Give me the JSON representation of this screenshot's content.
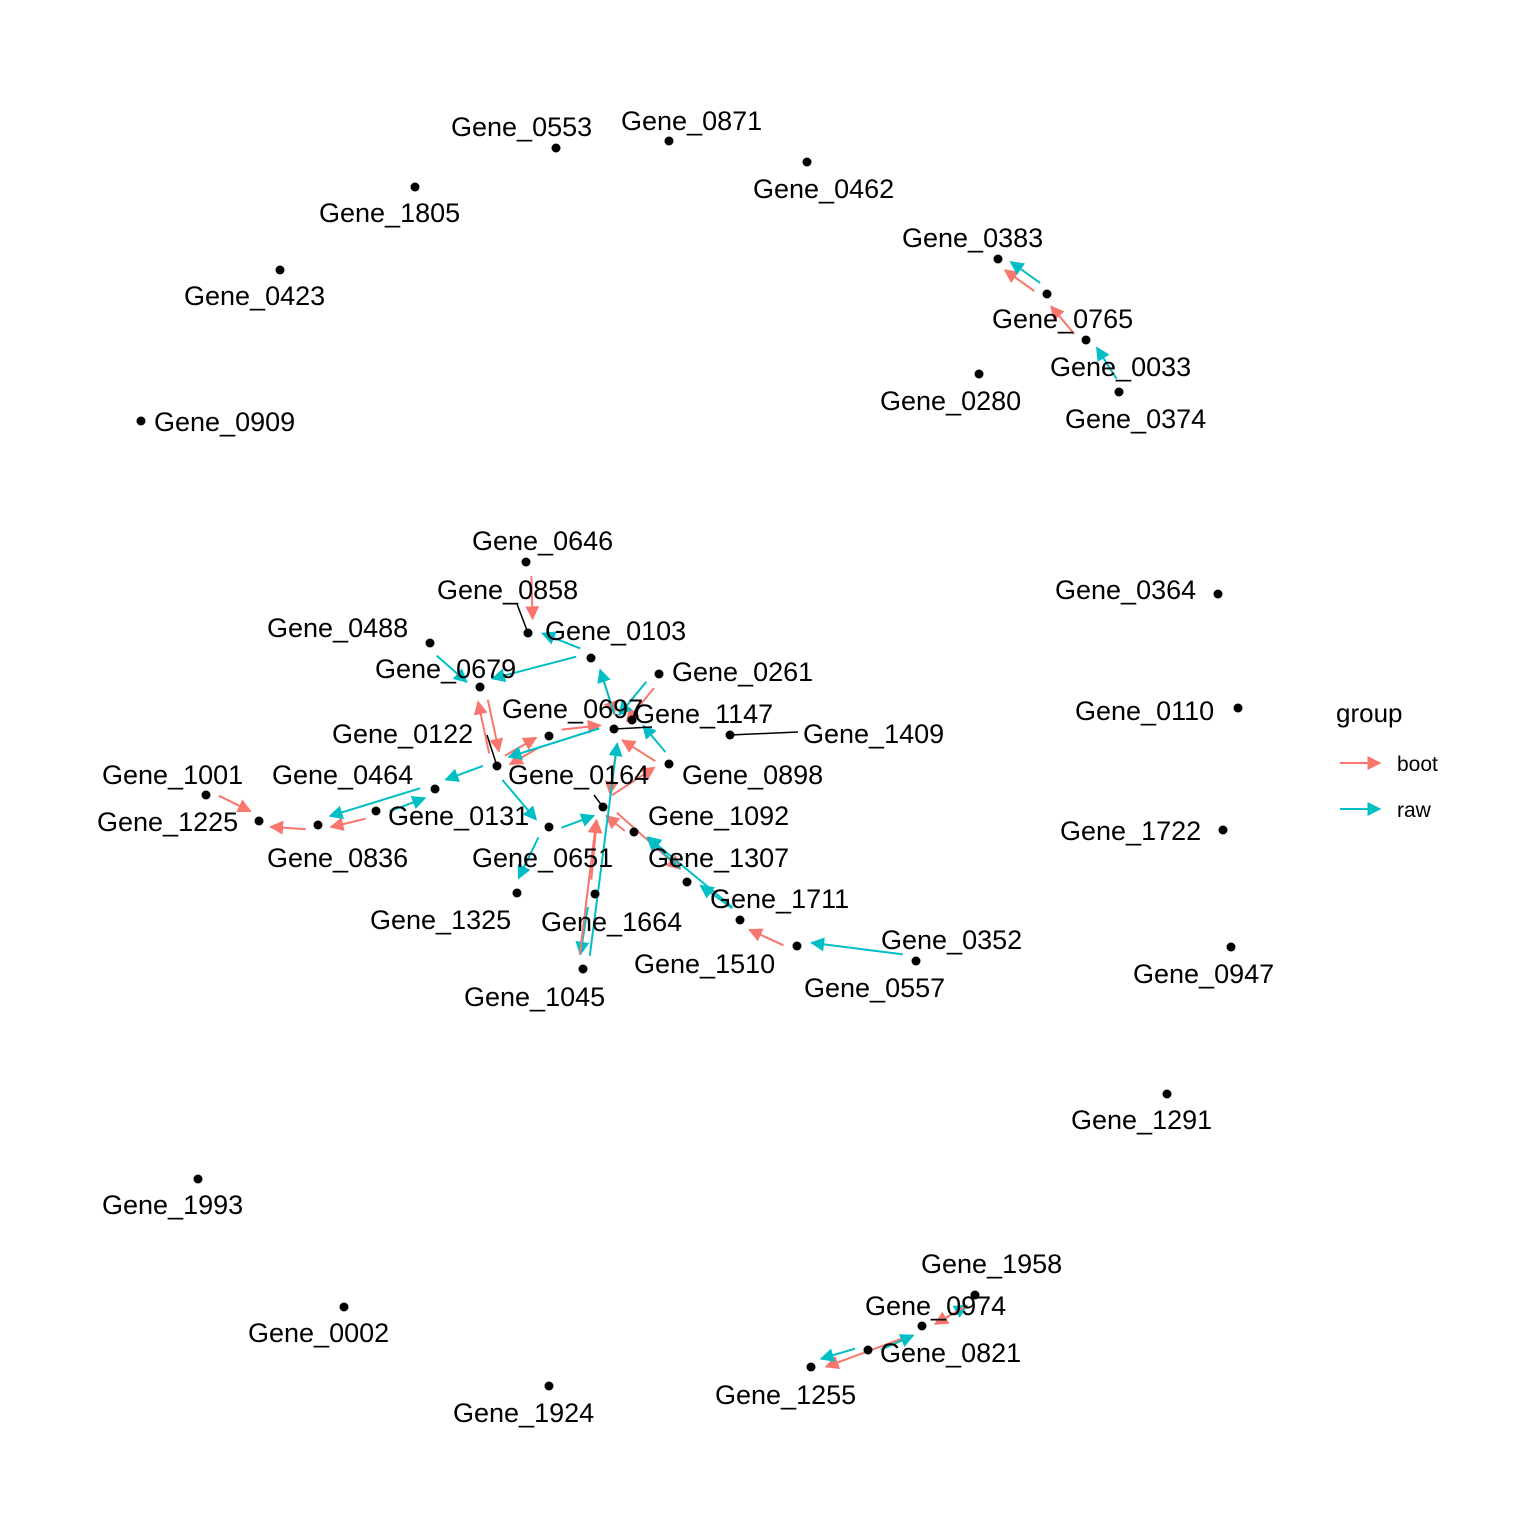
{
  "colors": {
    "boot": "#F8766D",
    "raw": "#00BFC4",
    "node": "#000000"
  },
  "legend": {
    "title": "group",
    "items": [
      {
        "key": "boot",
        "label": "boot"
      },
      {
        "key": "raw",
        "label": "raw"
      }
    ]
  },
  "nodes": [
    {
      "id": "Gene_0553",
      "label": "Gene_0553"
    },
    {
      "id": "Gene_0871",
      "label": "Gene_0871"
    },
    {
      "id": "Gene_0462",
      "label": "Gene_0462"
    },
    {
      "id": "Gene_1805",
      "label": "Gene_1805"
    },
    {
      "id": "Gene_0423",
      "label": "Gene_0423"
    },
    {
      "id": "Gene_0909",
      "label": "Gene_0909"
    },
    {
      "id": "Gene_0383",
      "label": "Gene_0383"
    },
    {
      "id": "Gene_0765",
      "label": "Gene_0765"
    },
    {
      "id": "Gene_0033",
      "label": "Gene_0033"
    },
    {
      "id": "Gene_0374",
      "label": "Gene_0374"
    },
    {
      "id": "Gene_0280",
      "label": "Gene_0280"
    },
    {
      "id": "Gene_0646",
      "label": "Gene_0646"
    },
    {
      "id": "Gene_0858",
      "label": "Gene_0858"
    },
    {
      "id": "Gene_0103",
      "label": "Gene_0103"
    },
    {
      "id": "Gene_0488",
      "label": "Gene_0488"
    },
    {
      "id": "Gene_0679",
      "label": "Gene_0679"
    },
    {
      "id": "Gene_0261",
      "label": "Gene_0261"
    },
    {
      "id": "Gene_0697",
      "label": "Gene_0697"
    },
    {
      "id": "Gene_1147",
      "label": "Gene_1147"
    },
    {
      "id": "Gene_1409",
      "label": "Gene_1409"
    },
    {
      "id": "Gene_0122",
      "label": "Gene_0122"
    },
    {
      "id": "Gene_0164",
      "label": "Gene_0164"
    },
    {
      "id": "Gene_0898",
      "label": "Gene_0898"
    },
    {
      "id": "Gene_1001",
      "label": "Gene_1001"
    },
    {
      "id": "Gene_0464",
      "label": "Gene_0464"
    },
    {
      "id": "Gene_1225",
      "label": "Gene_1225"
    },
    {
      "id": "Gene_0131",
      "label": "Gene_0131"
    },
    {
      "id": "Gene_1092",
      "label": "Gene_1092"
    },
    {
      "id": "Gene_0836",
      "label": "Gene_0836"
    },
    {
      "id": "Gene_0651",
      "label": "Gene_0651"
    },
    {
      "id": "Gene_1307",
      "label": "Gene_1307"
    },
    {
      "id": "Gene_1711",
      "label": "Gene_1711"
    },
    {
      "id": "Gene_1325",
      "label": "Gene_1325"
    },
    {
      "id": "Gene_1664",
      "label": "Gene_1664"
    },
    {
      "id": "Gene_0352",
      "label": "Gene_0352"
    },
    {
      "id": "Gene_1510",
      "label": "Gene_1510"
    },
    {
      "id": "Gene_0557",
      "label": "Gene_0557"
    },
    {
      "id": "Gene_1045",
      "label": "Gene_1045"
    },
    {
      "id": "Gene_0364",
      "label": "Gene_0364"
    },
    {
      "id": "Gene_0110",
      "label": "Gene_0110"
    },
    {
      "id": "Gene_1722",
      "label": "Gene_1722"
    },
    {
      "id": "Gene_0947",
      "label": "Gene_0947"
    },
    {
      "id": "Gene_1291",
      "label": "Gene_1291"
    },
    {
      "id": "Gene_1993",
      "label": "Gene_1993"
    },
    {
      "id": "Gene_0002",
      "label": "Gene_0002"
    },
    {
      "id": "Gene_1924",
      "label": "Gene_1924"
    },
    {
      "id": "Gene_1958",
      "label": "Gene_1958"
    },
    {
      "id": "Gene_0974",
      "label": "Gene_0974"
    },
    {
      "id": "Gene_0821",
      "label": "Gene_0821"
    },
    {
      "id": "Gene_1255",
      "label": "Gene_1255"
    }
  ],
  "edges": [
    {
      "from": "Gene_0765",
      "to": "Gene_0383",
      "group": "boot"
    },
    {
      "from": "Gene_0765",
      "to": "Gene_0383",
      "group": "raw"
    },
    {
      "from": "Gene_0033",
      "to": "Gene_0765",
      "group": "boot"
    },
    {
      "from": "Gene_0374",
      "to": "Gene_0033",
      "group": "raw"
    },
    {
      "from": "Gene_0646",
      "to": "Gene_0858",
      "group": "boot"
    },
    {
      "from": "Gene_0103",
      "to": "Gene_0858",
      "group": "raw"
    },
    {
      "from": "Gene_0103",
      "to": "Gene_0697",
      "group": "boot"
    },
    {
      "from": "Gene_0697",
      "to": "Gene_0103",
      "group": "raw"
    },
    {
      "from": "Gene_0488",
      "to": "Gene_0679",
      "group": "raw"
    },
    {
      "from": "Gene_0679",
      "to": "Gene_0164",
      "group": "boot"
    },
    {
      "from": "Gene_0164",
      "to": "Gene_0679",
      "group": "boot"
    },
    {
      "from": "Gene_0103",
      "to": "Gene_0679",
      "group": "raw"
    },
    {
      "from": "Gene_0261",
      "to": "Gene_0697",
      "group": "boot"
    },
    {
      "from": "Gene_0261",
      "to": "Gene_0697",
      "group": "raw"
    },
    {
      "from": "Gene_0122",
      "to": "Gene_0697",
      "group": "boot"
    },
    {
      "from": "Gene_0122",
      "to": "Gene_0164",
      "group": "boot"
    },
    {
      "from": "Gene_0164",
      "to": "Gene_0122",
      "group": "boot"
    },
    {
      "from": "Gene_0898",
      "to": "Gene_0697",
      "group": "boot"
    },
    {
      "from": "Gene_0898",
      "to": "Gene_1147",
      "group": "raw"
    },
    {
      "from": "Gene_0697",
      "to": "Gene_0164",
      "group": "raw"
    },
    {
      "from": "Gene_0697",
      "to": "Gene_1092",
      "group": "boot"
    },
    {
      "from": "Gene_0164",
      "to": "Gene_0464",
      "group": "raw"
    },
    {
      "from": "Gene_0164",
      "to": "Gene_0651",
      "group": "raw"
    },
    {
      "from": "Gene_0131",
      "to": "Gene_0836",
      "group": "boot"
    },
    {
      "from": "Gene_0131",
      "to": "Gene_0464",
      "group": "raw"
    },
    {
      "from": "Gene_0464",
      "to": "Gene_0836",
      "group": "raw"
    },
    {
      "from": "Gene_1001",
      "to": "Gene_1225",
      "group": "boot"
    },
    {
      "from": "Gene_0836",
      "to": "Gene_1225",
      "group": "boot"
    },
    {
      "from": "Gene_0651",
      "to": "Gene_1092",
      "group": "raw"
    },
    {
      "from": "Gene_0651",
      "to": "Gene_1325",
      "group": "raw"
    },
    {
      "from": "Gene_1092",
      "to": "Gene_0898",
      "group": "boot"
    },
    {
      "from": "Gene_1092",
      "to": "Gene_1711",
      "group": "boot"
    },
    {
      "from": "Gene_1307",
      "to": "Gene_1092",
      "group": "boot"
    },
    {
      "from": "Gene_1307",
      "to": "Gene_1711",
      "group": "boot"
    },
    {
      "from": "Gene_1510",
      "to": "Gene_1307",
      "group": "raw"
    },
    {
      "from": "Gene_1510",
      "to": "Gene_1711",
      "group": "raw"
    },
    {
      "from": "Gene_1711",
      "to": "Gene_1307",
      "group": "raw"
    },
    {
      "from": "Gene_0557",
      "to": "Gene_1510",
      "group": "boot"
    },
    {
      "from": "Gene_0352",
      "to": "Gene_0557",
      "group": "raw"
    },
    {
      "from": "Gene_1664",
      "to": "Gene_1092",
      "group": "boot"
    },
    {
      "from": "Gene_1664",
      "to": "Gene_1045",
      "group": "raw"
    },
    {
      "from": "Gene_1045",
      "to": "Gene_1092",
      "group": "boot"
    },
    {
      "from": "Gene_1045",
      "to": "Gene_0697",
      "group": "raw"
    },
    {
      "from": "Gene_0974",
      "to": "Gene_1255",
      "group": "boot"
    },
    {
      "from": "Gene_0821",
      "to": "Gene_1255",
      "group": "raw"
    },
    {
      "from": "Gene_0821",
      "to": "Gene_0974",
      "group": "raw"
    },
    {
      "from": "Gene_0974",
      "to": "Gene_1958",
      "group": "raw"
    },
    {
      "from": "Gene_1958",
      "to": "Gene_0974",
      "group": "boot"
    }
  ]
}
